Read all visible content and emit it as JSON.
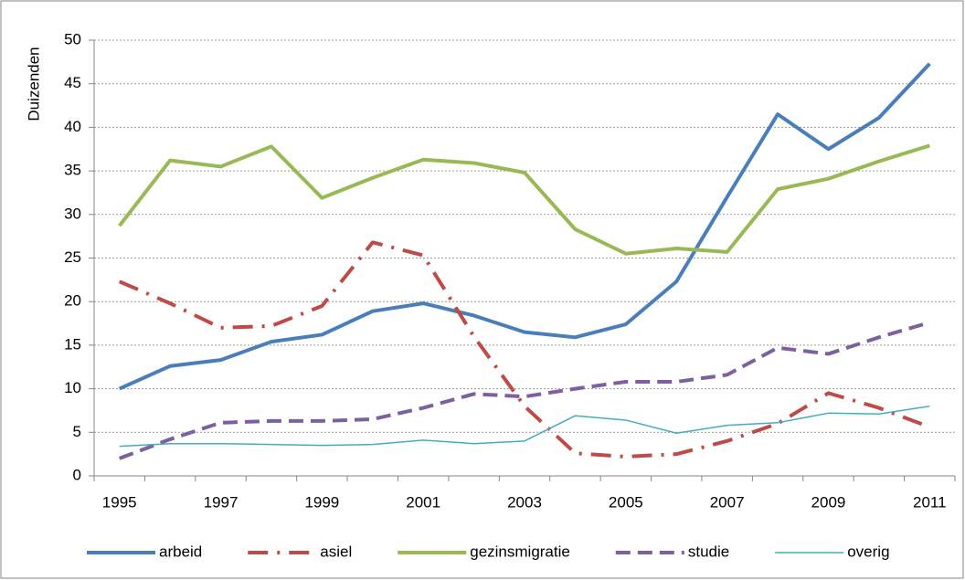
{
  "chart_data": {
    "type": "line",
    "y_label": "Duizenden",
    "categories": [
      "1995",
      null,
      "1997",
      null,
      "1999",
      null,
      "2001",
      null,
      "2003",
      null,
      "2005",
      null,
      "2007",
      null,
      "2009",
      null,
      "2011"
    ],
    "series": [
      {
        "name": "arbeid",
        "color": "#4a7ebb",
        "dash": "solid",
        "width": 4,
        "values": [
          10.0,
          12.6,
          13.3,
          15.4,
          16.2,
          18.9,
          19.8,
          18.4,
          16.5,
          15.9,
          17.4,
          22.3,
          32.0,
          41.5,
          37.5,
          41.1,
          47.3
        ]
      },
      {
        "name": "asiel",
        "color": "#be4b48",
        "dash": "dash-dot",
        "width": 4,
        "values": [
          22.3,
          19.8,
          17.0,
          17.2,
          19.5,
          26.8,
          25.3,
          16.0,
          8.0,
          2.6,
          2.2,
          2.5,
          4.0,
          6.0,
          9.5,
          7.8,
          5.6
        ]
      },
      {
        "name": "gezinsmigratie",
        "color": "#98b954",
        "dash": "solid",
        "width": 4,
        "values": [
          28.7,
          36.2,
          35.5,
          37.8,
          31.9,
          34.2,
          36.3,
          35.9,
          34.8,
          28.3,
          25.5,
          26.1,
          25.7,
          32.9,
          34.1,
          36.1,
          37.9
        ]
      },
      {
        "name": "studie",
        "color": "#7d60a0",
        "dash": "dash",
        "width": 4,
        "values": [
          2.0,
          4.2,
          6.1,
          6.3,
          6.3,
          6.5,
          7.8,
          9.4,
          9.1,
          10.0,
          10.8,
          10.8,
          11.6,
          14.7,
          14.0,
          15.9,
          17.6
        ]
      },
      {
        "name": "overig",
        "color": "#46aac5",
        "dash": "solid",
        "width": 1.5,
        "values": [
          3.4,
          3.7,
          3.7,
          3.6,
          3.5,
          3.6,
          4.1,
          3.7,
          4.0,
          6.9,
          6.4,
          4.9,
          5.8,
          6.1,
          7.2,
          7.1,
          8.0
        ]
      }
    ],
    "ylim": [
      0,
      50
    ],
    "yticks": [
      0,
      5,
      10,
      15,
      20,
      25,
      30,
      35,
      40,
      45,
      50
    ],
    "grid": true,
    "legend": "bottom"
  }
}
